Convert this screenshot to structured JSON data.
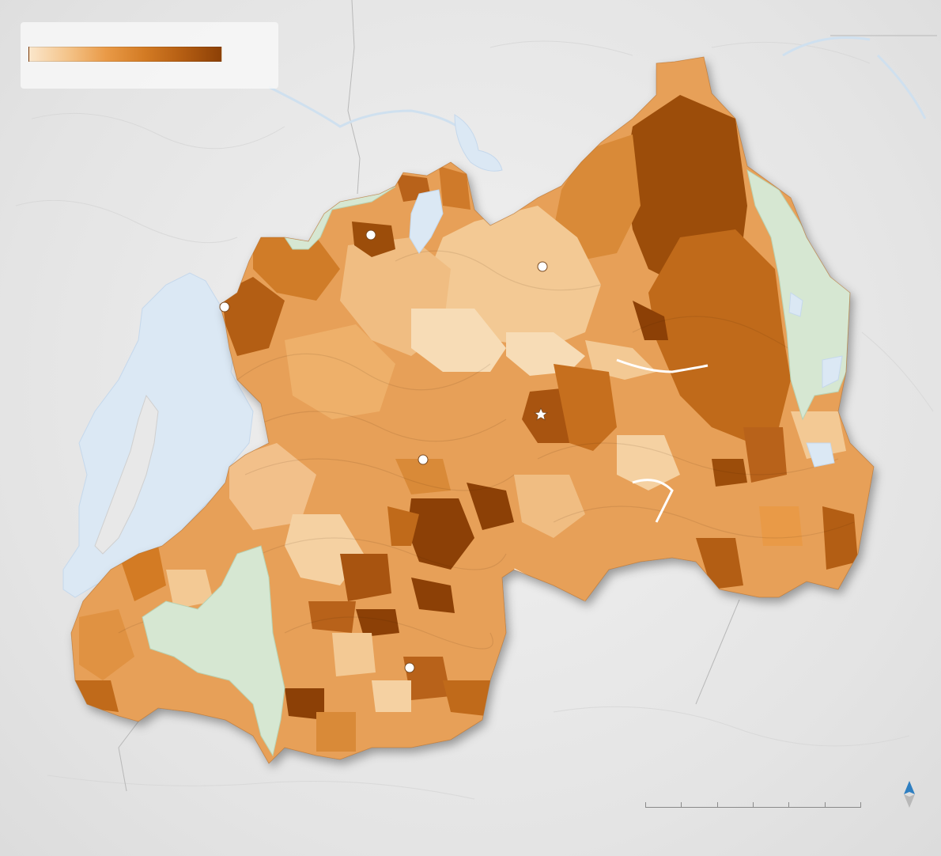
{
  "map": {
    "type": "choropleth",
    "colors": {
      "background": "#ececec",
      "water": "#dbe8f4",
      "water_stroke": "#c5d8ec",
      "protected_area": "#d6e7d2",
      "border_line": "#b8b8b8",
      "ramp": [
        "#fbe6cb",
        "#f4c48a",
        "#e99a47",
        "#d37b24",
        "#b45d12",
        "#8c4006"
      ]
    },
    "legend": {
      "ramp_classes": 6
    },
    "cities": [
      {
        "name": "city-nw-lake",
        "icon": "white-circle-marker"
      },
      {
        "name": "city-north",
        "icon": "white-circle-marker"
      },
      {
        "name": "city-north-central",
        "icon": "white-circle-marker"
      },
      {
        "name": "city-central",
        "icon": "white-circle-marker"
      },
      {
        "name": "city-south",
        "icon": "white-circle-marker"
      }
    ],
    "capital": {
      "name": "capital",
      "icon": "white-star-marker"
    },
    "scale_bar": {
      "segments": 6
    },
    "north_arrow": {
      "icon": "north-arrow-icon"
    }
  }
}
